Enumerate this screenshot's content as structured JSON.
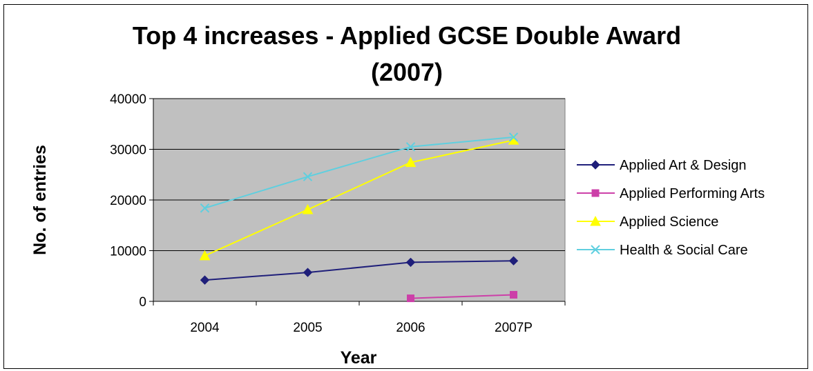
{
  "chart_data": {
    "type": "line",
    "title_line1": "Top 4 increases - Applied GCSE Double Award",
    "title_line2": "(2007)",
    "xlabel": "Year",
    "ylabel": "No. of entries",
    "categories": [
      "2004",
      "2005",
      "2006",
      "2007P"
    ],
    "ylim": [
      0,
      40000
    ],
    "yticks": [
      0,
      10000,
      20000,
      30000,
      40000
    ],
    "grid": true,
    "plot_background": "#C0C0C0",
    "legend_position": "right",
    "series": [
      {
        "name": "Applied Art & Design",
        "color": "#1F1F7A",
        "marker": "diamond",
        "values": [
          4200,
          5700,
          7700,
          8000
        ]
      },
      {
        "name": "Applied Performing Arts",
        "color": "#CC3FA8",
        "marker": "square",
        "values": [
          null,
          null,
          600,
          1300
        ]
      },
      {
        "name": "Applied Science",
        "color": "#FFFF00",
        "marker": "triangle",
        "values": [
          9000,
          18100,
          27400,
          31800
        ]
      },
      {
        "name": "Health & Social Care",
        "color": "#5FCFDF",
        "marker": "x",
        "values": [
          18400,
          24600,
          30500,
          32400
        ]
      }
    ]
  }
}
